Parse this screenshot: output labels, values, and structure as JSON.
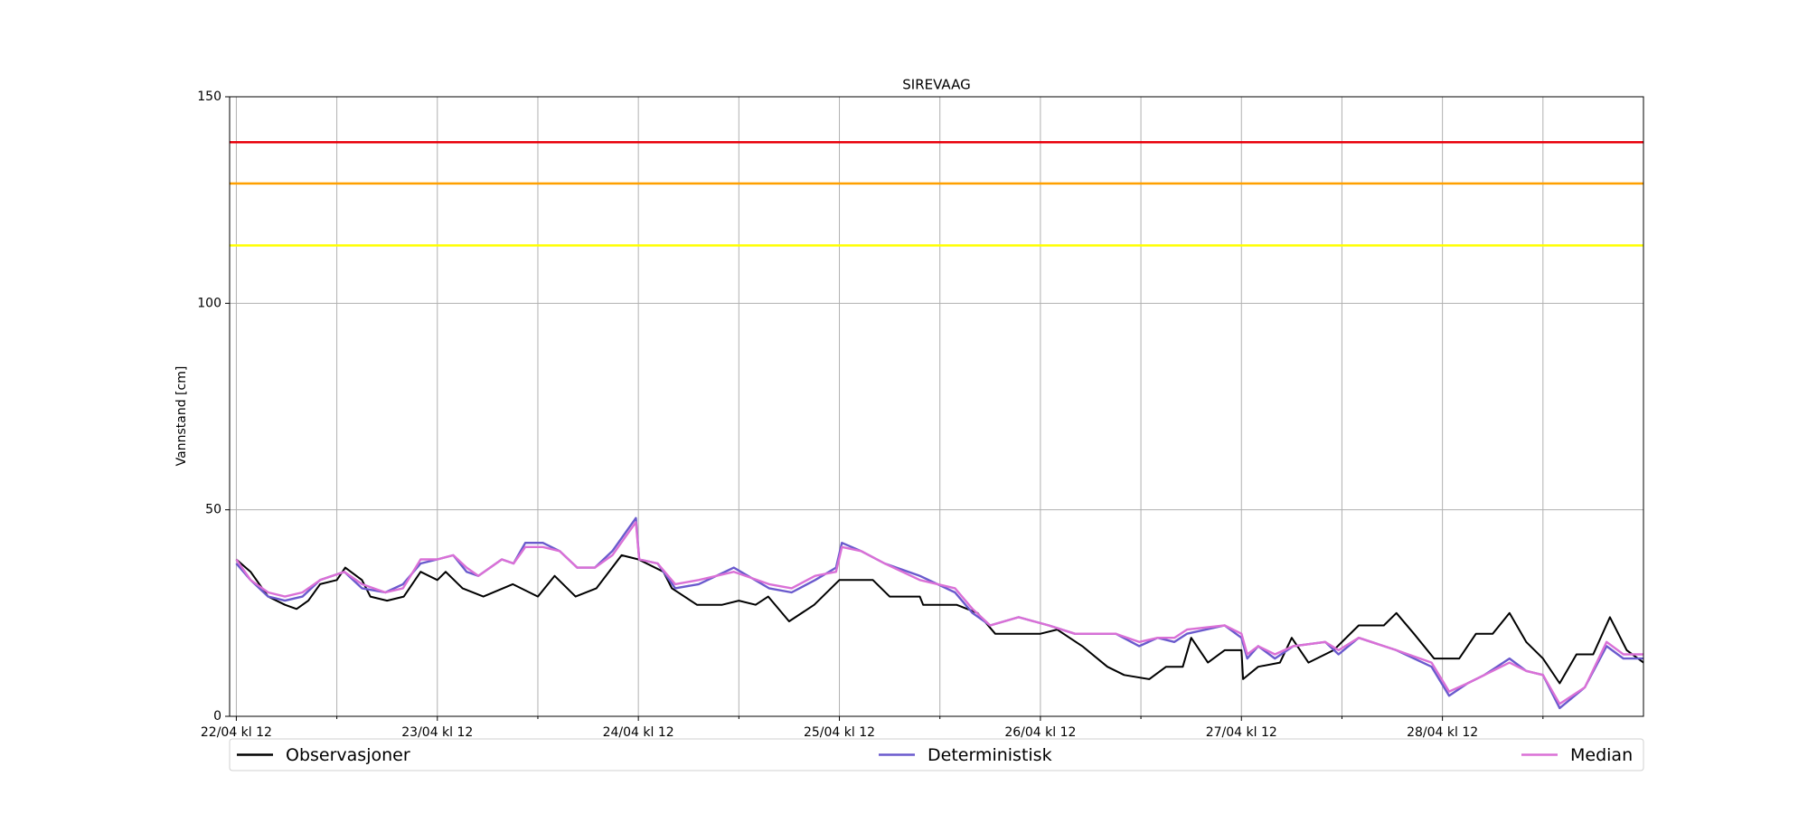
{
  "chart_data": {
    "type": "line",
    "title": "SIREVAAG",
    "y_label": "Vannstand [cm]",
    "xlim": [
      -0.8,
      168
    ],
    "ylim": [
      0,
      150
    ],
    "yticks": [
      0,
      50,
      100,
      150
    ],
    "xticks": [
      {
        "value": 0,
        "label": "22/04 kl 12"
      },
      {
        "value": 24,
        "label": "23/04 kl 12"
      },
      {
        "value": 48,
        "label": "24/04 kl 12"
      },
      {
        "value": 72,
        "label": "25/04 kl 12"
      },
      {
        "value": 96,
        "label": "26/04 kl 12"
      },
      {
        "value": 120,
        "label": "27/04 kl 12"
      },
      {
        "value": 144,
        "label": "28/04 kl 12"
      }
    ],
    "minor_xticks": [
      12,
      36,
      60,
      84,
      108,
      132,
      156
    ],
    "grid": true,
    "legend": "bottom",
    "thresholds": [
      {
        "value": 139,
        "color": "#e8000b"
      },
      {
        "value": 129,
        "color": "#ffa000"
      },
      {
        "value": 114,
        "color": "#ffff00"
      }
    ],
    "series": [
      {
        "name": "Observasjoner",
        "color": "#000000",
        "x": [
          0,
          1.7,
          3.8,
          5.8,
          7.2,
          8.6,
          10,
          12,
          13,
          15,
          16,
          18,
          20,
          22,
          24,
          25,
          27,
          29.5,
          33,
          36,
          38,
          40.5,
          43,
          46,
          48,
          51,
          52,
          55,
          58,
          60,
          62,
          63.5,
          66,
          69,
          72,
          76,
          78,
          81.6,
          82,
          86,
          88.5,
          90.6,
          92.7,
          96,
          98,
          101,
          104,
          106,
          109,
          111,
          113,
          114,
          116,
          118,
          120,
          120.2,
          122,
          124.6,
          126,
          128,
          131,
          134,
          137,
          138.5,
          140.6,
          143,
          146,
          148,
          150,
          152,
          154,
          156,
          158,
          160,
          162,
          164,
          166,
          168
        ],
        "values": [
          38,
          35,
          29,
          27,
          26,
          28,
          32,
          33,
          36,
          33,
          29,
          28,
          29,
          35,
          33,
          35,
          31,
          29,
          32,
          29,
          34,
          29,
          31,
          39,
          38,
          35,
          31,
          27,
          27,
          28,
          27,
          29,
          23,
          27,
          33,
          33,
          29,
          29,
          27,
          27,
          25,
          20,
          20,
          20,
          21,
          17,
          12,
          10,
          9,
          12,
          12,
          19,
          13,
          16,
          16,
          9,
          12,
          13,
          19,
          13,
          16,
          22,
          22,
          25,
          20,
          14,
          14,
          20,
          20,
          25,
          18,
          14,
          8,
          15,
          15,
          24,
          16,
          13
        ]
      },
      {
        "name": "Deterministisk",
        "color": "#6a5acd",
        "x": [
          0,
          1.7,
          3.8,
          5.8,
          7.9,
          10,
          12.9,
          15,
          17.8,
          19.9,
          22,
          24,
          25.9,
          27.5,
          28.9,
          31.7,
          33.1,
          34.5,
          36.6,
          38.6,
          40.7,
          42.8,
          44.9,
          46.3,
          47.7,
          48.1,
          50.3,
          52.4,
          55.2,
          59.4,
          63.6,
          66.3,
          69.1,
          71.6,
          72.3,
          74.6,
          77.4,
          81.6,
          85.8,
          87.9,
          90,
          93.4,
          97,
          100.1,
          105,
          107.8,
          110,
          112,
          113.5,
          118,
          120,
          120.7,
          122,
          124,
          126.2,
          130,
          131.6,
          134,
          138.5,
          142.7,
          144.8,
          147,
          149,
          152,
          154,
          156,
          158,
          161,
          163.6,
          165.6,
          168
        ],
        "values": [
          37,
          33,
          29,
          28,
          29,
          33,
          35,
          31,
          30,
          32,
          37,
          38,
          39,
          35,
          34,
          38,
          37,
          42,
          42,
          40,
          36,
          36,
          40,
          44,
          48,
          38,
          37,
          31,
          32,
          36,
          31,
          30,
          33,
          36,
          42,
          40,
          37,
          34,
          30,
          25,
          22,
          24,
          22,
          20,
          20,
          17,
          19,
          18,
          20,
          22,
          19,
          14,
          17,
          14,
          17,
          18,
          15,
          19,
          16,
          12,
          5,
          8,
          10,
          14,
          11,
          10,
          2,
          7,
          17,
          14,
          14
        ]
      },
      {
        "name": "Median",
        "color": "#da70d6",
        "x": [
          0,
          1.7,
          3.8,
          5.8,
          7.9,
          10,
          12.9,
          15,
          17.8,
          19.9,
          22,
          24,
          25.9,
          27.5,
          28.9,
          31.7,
          33.1,
          34.5,
          36.6,
          38.6,
          40.7,
          42.8,
          44.9,
          46.3,
          47.7,
          48.1,
          50.3,
          52.4,
          55.2,
          59.4,
          63.6,
          66.3,
          69.1,
          71.6,
          72.3,
          74.6,
          77.4,
          81.6,
          85.8,
          87.9,
          90,
          93.4,
          97,
          100.1,
          105,
          107.8,
          110,
          112,
          113.5,
          118,
          120,
          120.7,
          122,
          124,
          126.2,
          130,
          131.6,
          134,
          138.5,
          142.7,
          144.8,
          147,
          149,
          152,
          154,
          156,
          158,
          161,
          163.6,
          165.6,
          168
        ],
        "values": [
          38,
          33,
          30,
          29,
          30,
          33,
          35,
          32,
          30,
          31,
          38,
          38,
          39,
          36,
          34,
          38,
          37,
          41,
          41,
          40,
          36,
          36,
          39,
          43,
          47,
          38,
          37,
          32,
          33,
          35,
          32,
          31,
          34,
          35,
          41,
          40,
          37,
          33,
          31,
          26,
          22,
          24,
          22,
          20,
          20,
          18,
          19,
          19,
          21,
          22,
          20,
          15,
          17,
          15,
          17,
          18,
          16,
          19,
          16,
          13,
          6,
          8,
          10,
          13,
          11,
          10,
          3,
          7,
          18,
          15,
          15
        ]
      }
    ]
  }
}
